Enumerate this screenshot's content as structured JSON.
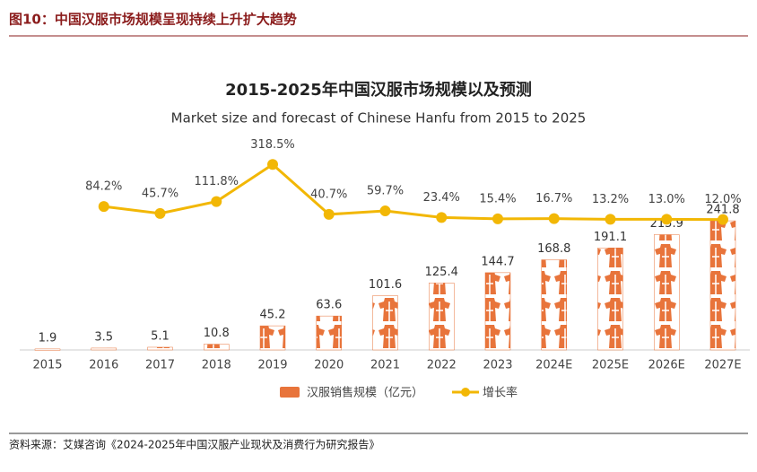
{
  "figure_title": "图10：中国汉服市场规模呈现持续上升扩大趋势",
  "source": "资料来源：艾媒咨询《2024-2025年中国汉服产业现状及消费行为研究报告》",
  "chart_data": {
    "type": "bar-line",
    "title": "2015-2025年中国汉服市场规模以及预测",
    "subtitle": "Market size and forecast of Chinese Hanfu from 2015 to 2025",
    "categories": [
      "2015",
      "2016",
      "2017",
      "2018",
      "2019",
      "2020",
      "2021",
      "2022",
      "2023",
      "2024E",
      "2025E",
      "2026E",
      "2027E"
    ],
    "ylim": [
      0,
      420
    ],
    "y2lim": [
      -715,
      535
    ],
    "series": [
      {
        "name": "汉服销售规模（亿元）",
        "type": "bar",
        "color": "#e8743b",
        "values": [
          1.9,
          3.5,
          5.1,
          10.8,
          45.2,
          63.6,
          101.6,
          125.4,
          144.7,
          168.8,
          191.1,
          215.9,
          241.8
        ]
      },
      {
        "name": "增长率",
        "type": "line",
        "axis": "y2",
        "color": "#f2b705",
        "values": [
          null,
          84.2,
          45.7,
          111.8,
          318.5,
          40.7,
          59.7,
          23.4,
          15.4,
          16.7,
          13.2,
          13.0,
          12.0
        ],
        "value_labels": [
          null,
          "84.2%",
          "45.7%",
          "111.8%",
          "318.5%",
          "40.7%",
          "59.7%",
          "23.4%",
          "15.4%",
          "16.7%",
          "13.2%",
          "13.0%",
          "12.0%"
        ]
      }
    ],
    "legend": "bottom"
  }
}
